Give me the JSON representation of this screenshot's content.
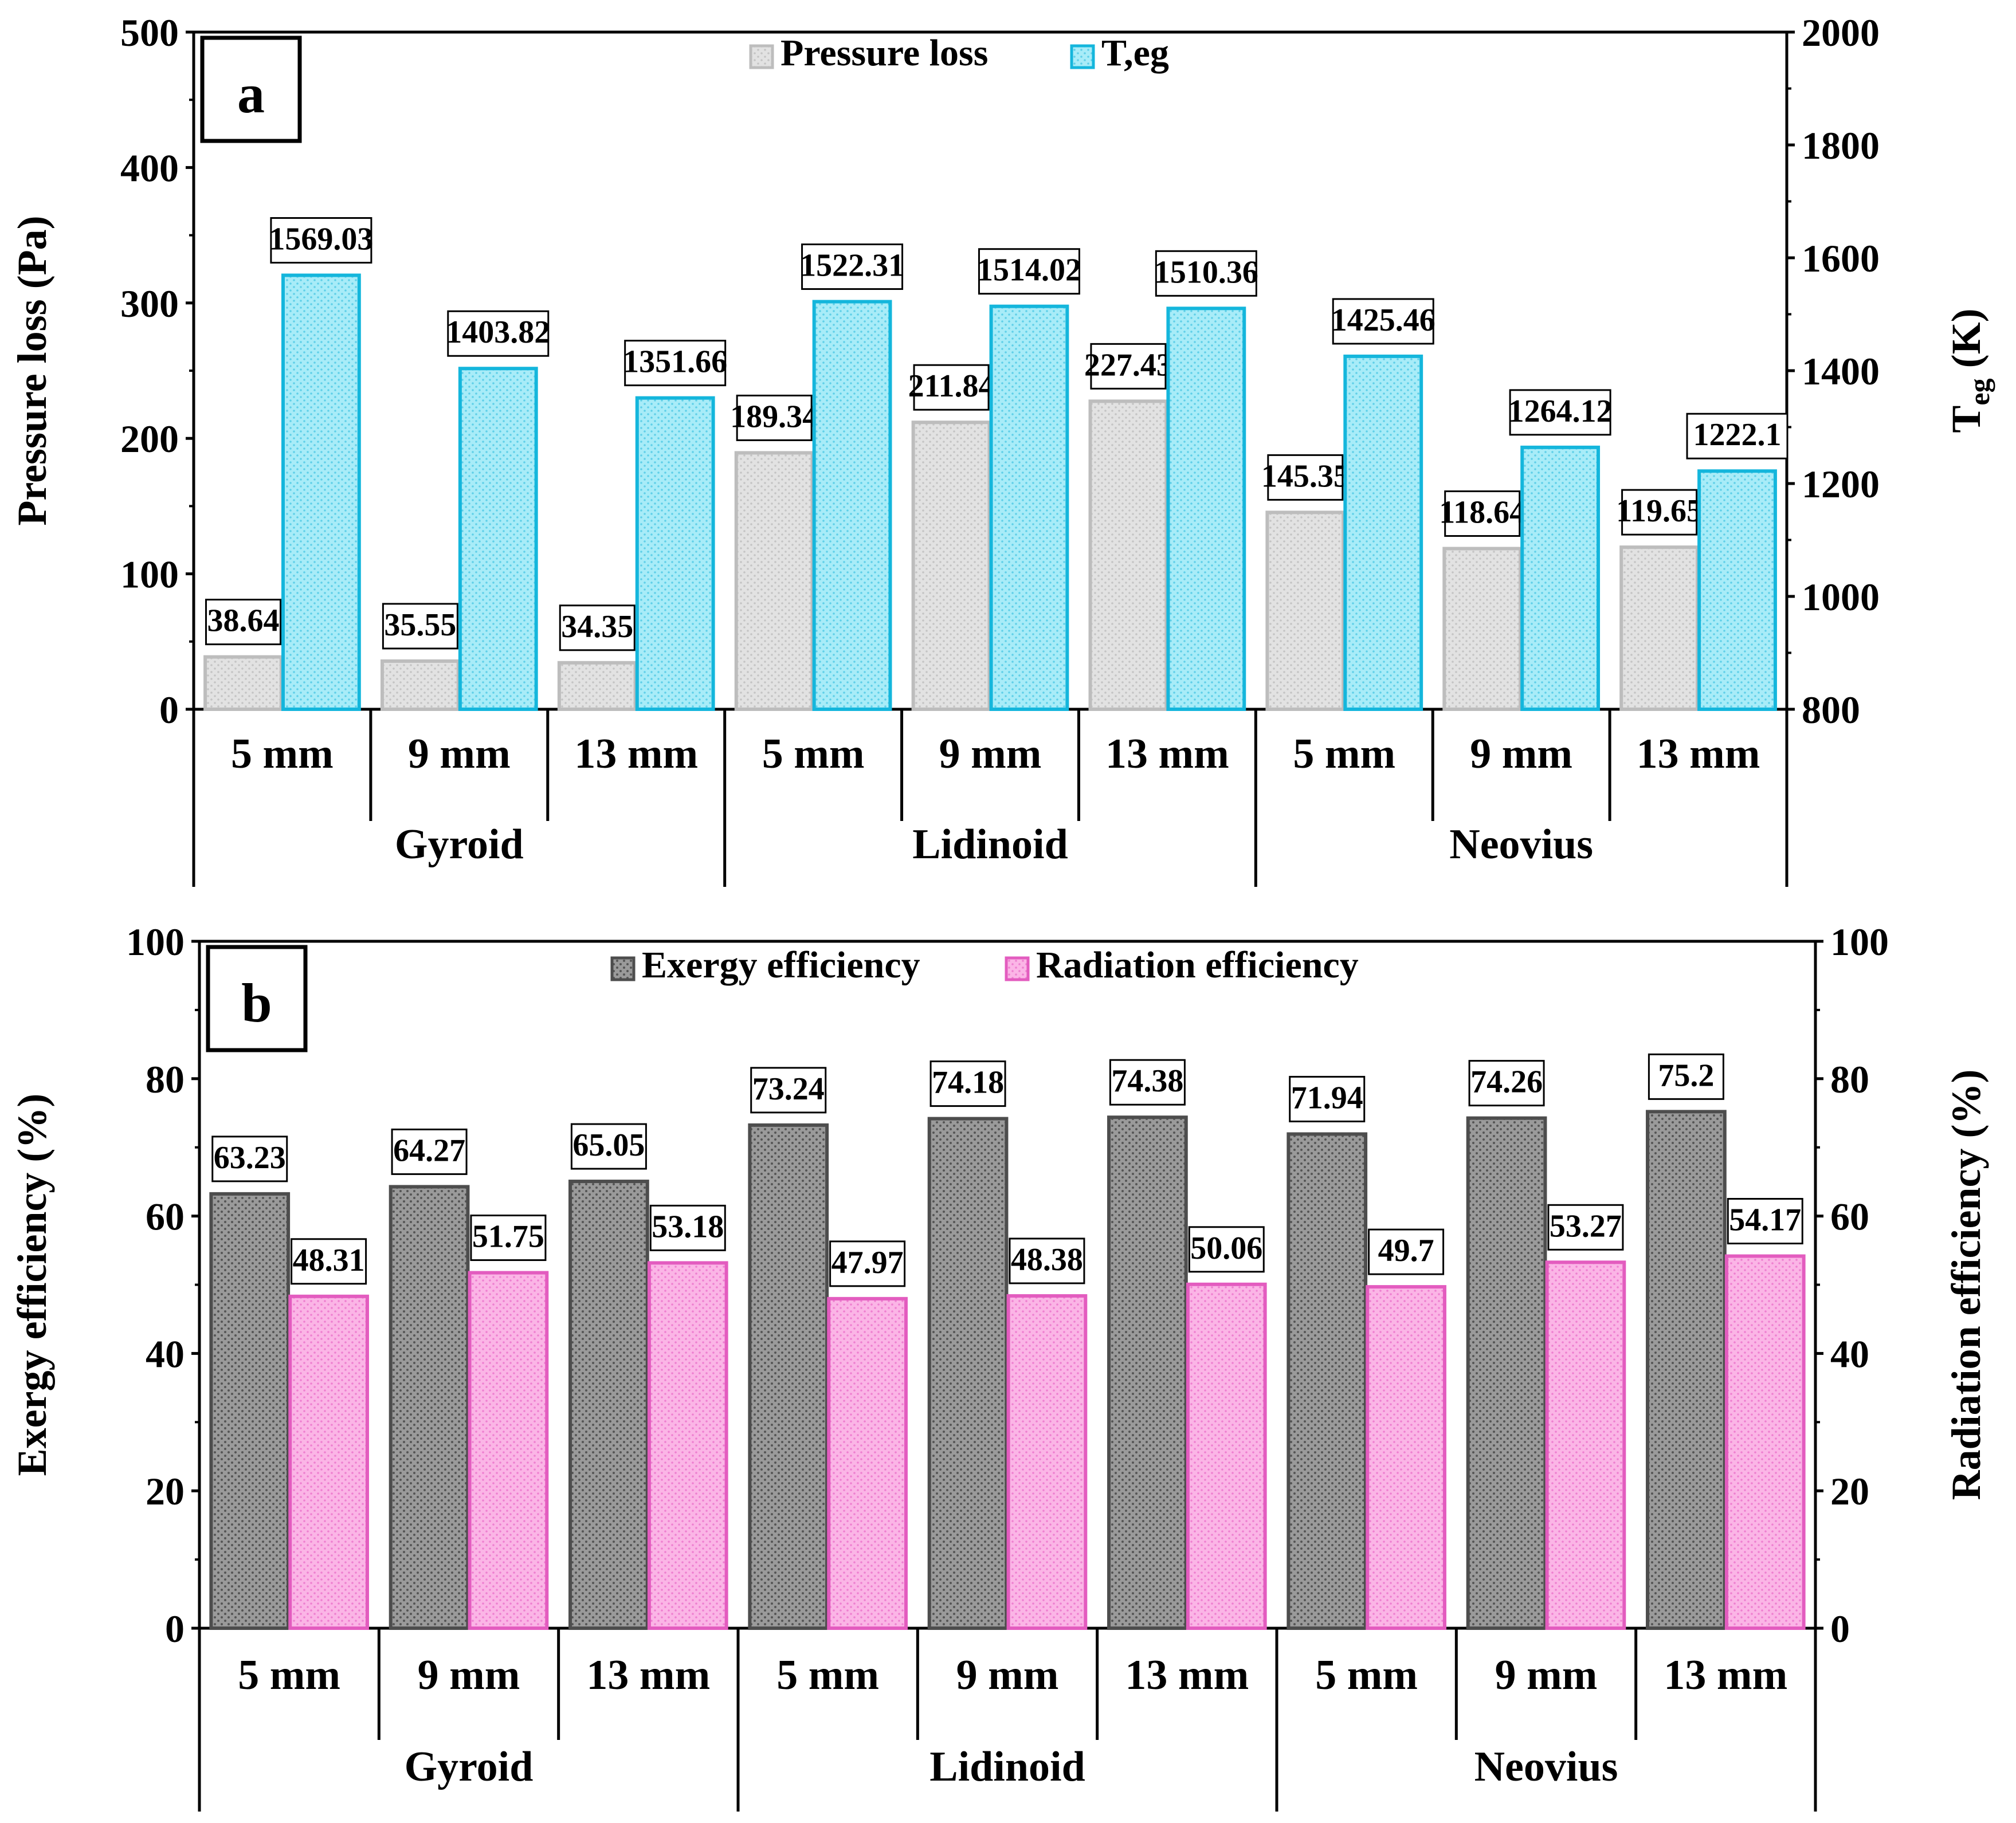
{
  "colors": {
    "pressure_fill": "#d9d9d9",
    "pressure_stroke": "#bdbdbd",
    "teg_fill": "#9ee7f5",
    "teg_stroke": "#14b6dc",
    "exergy_fill": "#8c8c8c",
    "exergy_stroke": "#4d4d4d",
    "radiation_fill": "#f9a6e0",
    "radiation_stroke": "#e35cbf"
  },
  "chart_data": [
    {
      "id": "a",
      "type": "bar",
      "panel_label": "a",
      "groups": [
        "Gyroid",
        "Lidinoid",
        "Neovius"
      ],
      "categories": [
        "5 mm",
        "9 mm",
        "13 mm",
        "5 mm",
        "9 mm",
        "13 mm",
        "5 mm",
        "9 mm",
        "13 mm"
      ],
      "series": [
        {
          "name": "Pressure loss",
          "axis": "left",
          "values": [
            38.64,
            35.55,
            34.35,
            189.34,
            211.84,
            227.43,
            145.35,
            118.64,
            119.65
          ],
          "labels": [
            "38.64",
            "35.55",
            "34.35",
            "189.34",
            "211.84",
            "227.43",
            "145.35",
            "118.64",
            "119.65"
          ]
        },
        {
          "name": "T,eg",
          "axis": "right",
          "values": [
            1569.03,
            1403.82,
            1351.66,
            1522.31,
            1514.02,
            1510.36,
            1425.46,
            1264.12,
            1222.1
          ],
          "labels": [
            "1569.03",
            "1403.82",
            "1351.66",
            "1522.31",
            "1514.02",
            "1510.36",
            "1425.46",
            "1264.12",
            "1222.1"
          ]
        }
      ],
      "ylabel": "Pressure loss (Pa)",
      "ylabel_right_main": "T",
      "ylabel_right_sub": "eg",
      "ylabel_right_tail": " (K)",
      "ylim": [
        0,
        500
      ],
      "yticks": [
        "0",
        "100",
        "200",
        "300",
        "400",
        "500"
      ],
      "ylim_right": [
        800,
        2000
      ],
      "yticks_right": [
        "800",
        "1000",
        "1200",
        "1400",
        "1600",
        "1800",
        "2000"
      ],
      "legend_position": "top-center"
    },
    {
      "id": "b",
      "type": "bar",
      "panel_label": "b",
      "groups": [
        "Gyroid",
        "Lidinoid",
        "Neovius"
      ],
      "categories": [
        "5 mm",
        "9 mm",
        "13 mm",
        "5 mm",
        "9 mm",
        "13 mm",
        "5 mm",
        "9 mm",
        "13 mm"
      ],
      "series": [
        {
          "name": "Exergy efficiency",
          "axis": "left",
          "values": [
            63.23,
            64.27,
            65.05,
            73.24,
            74.18,
            74.38,
            71.94,
            74.26,
            75.2
          ],
          "labels": [
            "63.23",
            "64.27",
            "65.05",
            "73.24",
            "74.18",
            "74.38",
            "71.94",
            "74.26",
            "75.2"
          ]
        },
        {
          "name": "Radiation efficiency",
          "axis": "right",
          "values": [
            48.31,
            51.75,
            53.18,
            47.97,
            48.38,
            50.06,
            49.7,
            53.27,
            54.17
          ],
          "labels": [
            "48.31",
            "51.75",
            "53.18",
            "47.97",
            "48.38",
            "50.06",
            "49.7",
            "53.27",
            "54.17"
          ]
        }
      ],
      "ylabel": "Exergy efficiency (%)",
      "ylabel_right": "Radiation efficiency (%)",
      "ylim": [
        0,
        100
      ],
      "yticks": [
        "0",
        "20",
        "40",
        "60",
        "80",
        "100"
      ],
      "ylim_right": [
        0,
        100
      ],
      "yticks_right": [
        "0",
        "20",
        "40",
        "60",
        "80",
        "100"
      ],
      "legend_position": "top-center"
    }
  ]
}
